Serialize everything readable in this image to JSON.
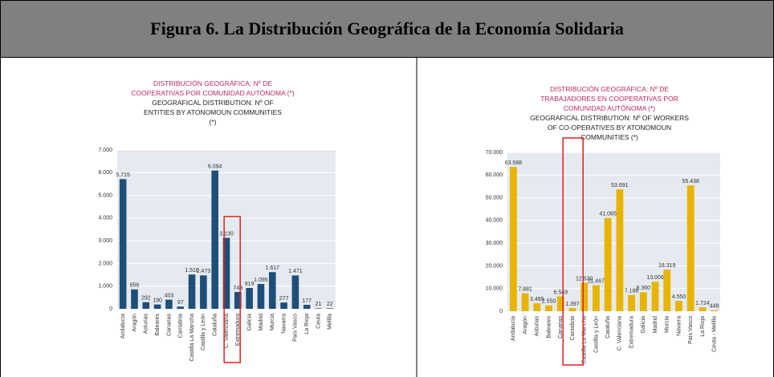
{
  "header": {
    "title": "Figura 6. La Distribución Geográfica de la Economía Solidaria"
  },
  "chart_data": [
    {
      "type": "bar",
      "title": "DISTRIBUCIÓN GEOGRÁFICA: Nº DE COOPERATIVAS POR COMUNIDAD AUTÓNOMA (*)",
      "subtitle": "GEOGRAFICAL DISTRIBUTION: Nº OF ENTITIES BY ATONOMOUN COMMUNITIES (*)",
      "categories": [
        "Andalucía",
        "Aragón",
        "Asturias",
        "Baleares",
        "Canarias",
        "Cantabria",
        "Castilla La Mancha",
        "Castilla y León",
        "Cataluña",
        "C. Valenciana",
        "Extremadura",
        "Galicia",
        "Madrid",
        "Murcia",
        "Navarra",
        "País Vasco",
        "La Rioja",
        "Ceuta",
        "Melilla"
      ],
      "values": [
        5715,
        856,
        292,
        190,
        403,
        97,
        1510,
        1473,
        6094,
        3130,
        743,
        919,
        1095,
        1617,
        277,
        1471,
        177,
        21,
        22
      ],
      "value_labels": [
        "5.715",
        "856",
        "292",
        "190",
        "403",
        "97",
        "1.510",
        "1.473",
        "6.094",
        "3.130",
        "743",
        "919",
        "1.095",
        "1.617",
        "277",
        "1.471",
        "177",
        "21",
        "22"
      ],
      "color": "#1f4e79",
      "ylim": [
        0,
        7000
      ],
      "yticks": [
        0,
        {
          "value": 1000,
          "label": "1.000"
        },
        {
          "value": 2000,
          "label": "2.000"
        },
        {
          "value": 3000,
          "label": "3.000"
        },
        {
          "value": 4000,
          "label": "4.000"
        },
        {
          "value": 5000,
          "label": "5.000"
        },
        {
          "value": 6000,
          "label": "6.000"
        },
        {
          "value": 7000,
          "label": "7.000"
        }
      ],
      "grid": true
    },
    {
      "type": "bar",
      "title": "DISTRIBUCIÓN GEOGRÁFICA: Nº DE TRABAJADORES EN COOPERATIVAS POR COMUNIDAD AUTÓNOMA (*)",
      "subtitle": "GEOGRAFICAL DISTRIBUTION: Nº OF WORKERS OF CO-OPERATIVES BY ATONOMOUN COMMUNITIES (*)",
      "categories": [
        "Andalucía",
        "Aragón",
        "Asturias",
        "Baleares",
        "Canarias",
        "Cantabria",
        "Castilla La Mancha",
        "Castilla y León",
        "Cataluña",
        "C. Valenciana",
        "Extremadura",
        "Galicia",
        "Madrid",
        "Murcia",
        "Navarra",
        "País Vasco",
        "La Rioja",
        "Ceuta - Melilla"
      ],
      "values": [
        63588,
        7881,
        3485,
        2550,
        6549,
        1397,
        12530,
        11467,
        41065,
        53691,
        7188,
        8360,
        13006,
        18319,
        4550,
        55438,
        1724,
        448
      ],
      "value_labels": [
        "63.588",
        "7.881",
        "3.485",
        "2.550",
        "6.549",
        "1.397",
        "12.530",
        "11.467",
        "41.065",
        "53.691",
        "7.188",
        "8.360",
        "13.006",
        "18.319",
        "4.550",
        "55.438",
        "1.724",
        "448"
      ],
      "color": "#e8b400",
      "ylim": [
        0,
        70000
      ],
      "yticks": [
        0,
        {
          "value": 10000,
          "label": "10.000"
        },
        {
          "value": 20000,
          "label": "20.000"
        },
        {
          "value": 30000,
          "label": "30.000"
        },
        {
          "value": 40000,
          "label": "40.000"
        },
        {
          "value": 50000,
          "label": "50.000"
        },
        {
          "value": 60000,
          "label": "60.000"
        },
        {
          "value": 70000,
          "label": "70.000"
        }
      ],
      "grid": true
    }
  ]
}
